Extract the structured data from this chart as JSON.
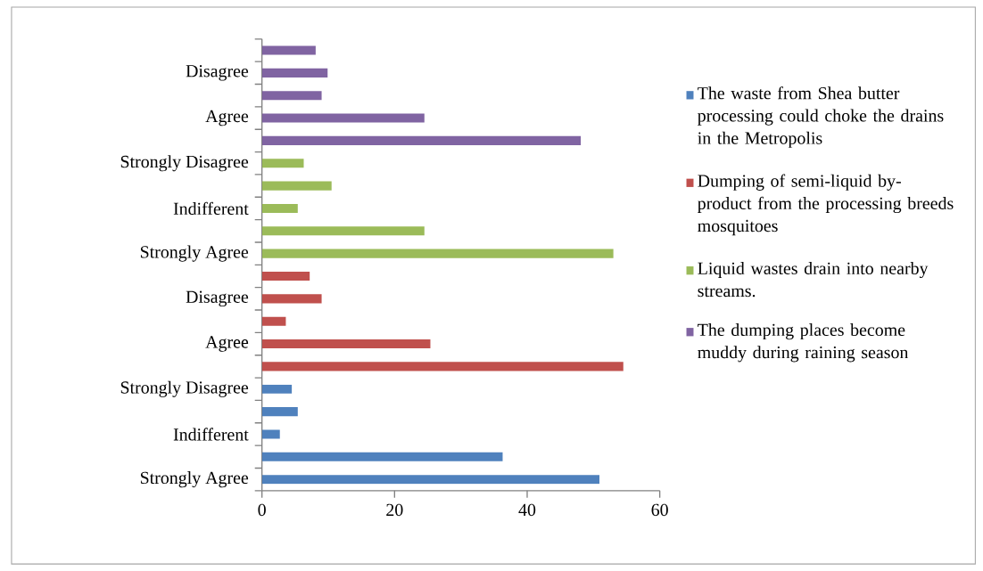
{
  "chart_data": {
    "type": "bar",
    "orientation": "horizontal",
    "categories": [
      null,
      "Disagree",
      null,
      "Agree",
      null,
      "Strongly Disagree",
      null,
      "Indifferent",
      null,
      "Strongly Agree",
      null,
      "Disagree",
      null,
      "Agree",
      null,
      "Strongly Disagree",
      null,
      "Indifferent",
      null,
      "Strongly Agree"
    ],
    "series": [
      {
        "name": "The waste from Shea butter processing could choke the drains in the Metropolis",
        "color": "#4f81bd",
        "values": [
          null,
          null,
          null,
          null,
          null,
          null,
          null,
          null,
          null,
          null,
          null,
          null,
          null,
          null,
          null,
          4.5,
          5.4,
          2.7,
          36.3,
          50.9
        ]
      },
      {
        "name": "Dumping of semi-liquid by-product from the processing breeds mosquitoes",
        "color": "#c0504d",
        "values": [
          null,
          null,
          null,
          null,
          null,
          null,
          null,
          null,
          null,
          null,
          7.2,
          9.0,
          3.6,
          25.4,
          54.5,
          null,
          null,
          null,
          null,
          null
        ]
      },
      {
        "name": "Liquid wastes drain into nearby streams.",
        "color": "#9bbb59",
        "values": [
          null,
          null,
          null,
          null,
          null,
          6.3,
          10.5,
          5.4,
          24.5,
          53.0,
          null,
          null,
          null,
          null,
          null,
          null,
          null,
          null,
          null,
          null
        ]
      },
      {
        "name": "The dumping places become muddy during raining season",
        "color": "#8064a2",
        "values": [
          8.1,
          9.9,
          9.0,
          24.5,
          48.1,
          null,
          null,
          null,
          null,
          null,
          null,
          null,
          null,
          null,
          null,
          null,
          null,
          null,
          null,
          null
        ]
      }
    ],
    "xlim": [
      0,
      60
    ],
    "xticks": [
      0,
      20,
      40,
      60
    ],
    "legend": "right",
    "grid": false
  }
}
